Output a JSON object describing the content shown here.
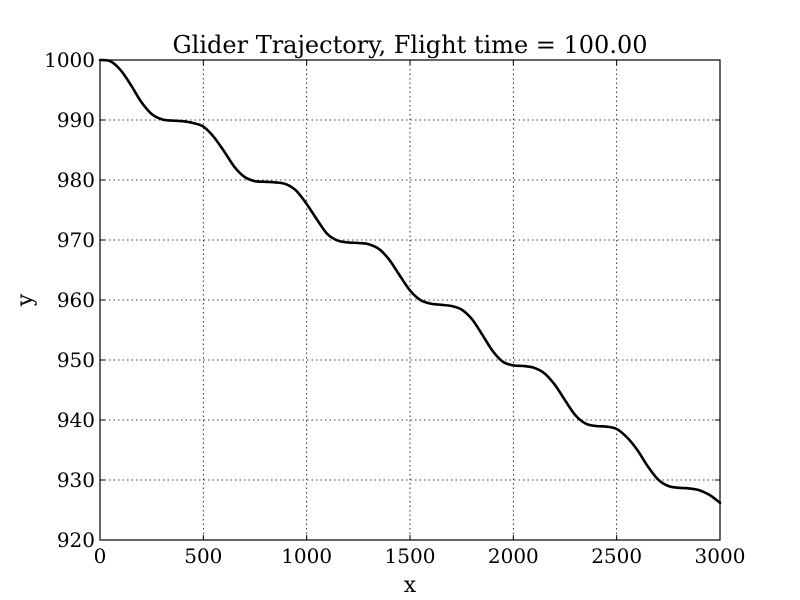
{
  "chart_data": {
    "type": "line",
    "title": "Glider Trajectory, Flight time = 100.00",
    "xlabel": "x",
    "ylabel": "y",
    "xlim": [
      0,
      3000
    ],
    "ylim": [
      920,
      1000
    ],
    "xticks": [
      0,
      500,
      1000,
      1500,
      2000,
      2500,
      3000
    ],
    "yticks": [
      920,
      930,
      940,
      950,
      960,
      970,
      980,
      990,
      1000
    ],
    "xtick_labels": [
      "0",
      "500",
      "1000",
      "1500",
      "2000",
      "2500",
      "3000"
    ],
    "ytick_labels": [
      "920",
      "930",
      "940",
      "950",
      "960",
      "970",
      "980",
      "990",
      "1000"
    ],
    "grid": true,
    "series": [
      {
        "color": "#000000",
        "x": [
          0,
          50,
          100,
          150,
          200,
          250,
          300,
          350,
          400,
          450,
          500,
          550,
          600,
          650,
          700,
          750,
          800,
          850,
          900,
          950,
          1000,
          1050,
          1100,
          1150,
          1200,
          1250,
          1300,
          1350,
          1400,
          1450,
          1500,
          1550,
          1600,
          1650,
          1700,
          1750,
          1800,
          1850,
          1900,
          1950,
          2000,
          2050,
          2100,
          2150,
          2200,
          2250,
          2300,
          2350,
          2400,
          2450,
          2500,
          2550,
          2600,
          2650,
          2700,
          2750,
          2800,
          2850,
          2900,
          2950,
          3000
        ],
        "y": [
          1000.0,
          999.8,
          998.3,
          995.8,
          993.0,
          991.0,
          990.1,
          989.9,
          989.8,
          989.5,
          988.9,
          987.2,
          984.8,
          982.2,
          980.5,
          979.8,
          979.7,
          979.6,
          979.3,
          978.2,
          976.0,
          973.4,
          971.0,
          969.9,
          969.6,
          969.5,
          969.3,
          968.5,
          966.7,
          964.1,
          961.6,
          960.0,
          959.4,
          959.2,
          959.0,
          958.4,
          956.8,
          954.2,
          951.5,
          949.7,
          949.1,
          949.0,
          948.7,
          947.8,
          945.9,
          943.3,
          940.8,
          939.4,
          939.0,
          938.9,
          938.5,
          937.1,
          935.0,
          932.3,
          930.1,
          929.0,
          928.7,
          928.6,
          928.3,
          927.5,
          926.2
        ]
      }
    ]
  }
}
